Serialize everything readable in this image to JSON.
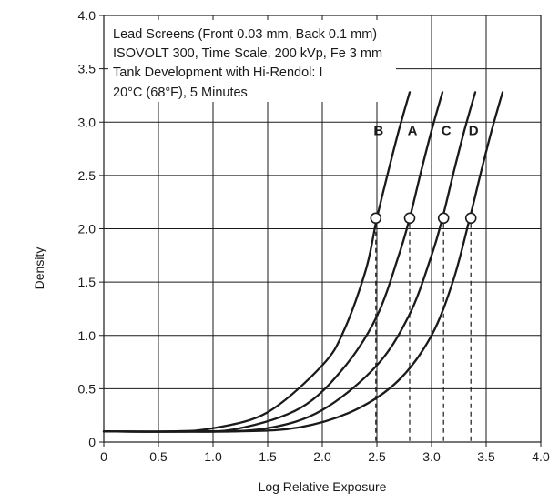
{
  "chart_data": {
    "type": "line",
    "xlabel": "Log Relative Exposure",
    "ylabel": "Density",
    "xlim": [
      0,
      4.0
    ],
    "ylim": [
      0,
      4.0
    ],
    "x_ticks": [
      "0",
      "0.5",
      "1.0",
      "1.5",
      "2.0",
      "2.5",
      "3.0",
      "3.5",
      "4.0"
    ],
    "y_ticks": [
      "0",
      "0.5",
      "1.0",
      "1.5",
      "2.0",
      "2.5",
      "3.0",
      "3.5",
      "4.0"
    ],
    "grid": true,
    "annotation_lines": [
      "Lead Screens (Front 0.03 mm, Back 0.1 mm)",
      "ISOVOLT 300, Time Scale, 200 kVp, Fe 3 mm",
      "Tank Development with Hi-Rendol: I",
      "20°C (68°F), 5 Minutes"
    ],
    "reference_density": 2.1,
    "series": [
      {
        "name": "B",
        "points": [
          [
            0,
            0.1
          ],
          [
            0.6,
            0.1
          ],
          [
            1.0,
            0.13
          ],
          [
            1.5,
            0.28
          ],
          [
            2.0,
            0.72
          ],
          [
            2.2,
            1.05
          ],
          [
            2.4,
            1.62
          ],
          [
            2.5,
            2.1
          ],
          [
            2.6,
            2.52
          ],
          [
            2.7,
            2.92
          ],
          [
            2.8,
            3.28
          ]
        ],
        "marker_x": 2.49
      },
      {
        "name": "A",
        "points": [
          [
            0,
            0.1
          ],
          [
            0.7,
            0.1
          ],
          [
            1.2,
            0.12
          ],
          [
            1.8,
            0.32
          ],
          [
            2.2,
            0.7
          ],
          [
            2.5,
            1.18
          ],
          [
            2.7,
            1.75
          ],
          [
            2.8,
            2.1
          ],
          [
            2.9,
            2.52
          ],
          [
            3.0,
            2.92
          ],
          [
            3.1,
            3.28
          ]
        ],
        "marker_x": 2.8
      },
      {
        "name": "C",
        "points": [
          [
            0,
            0.1
          ],
          [
            0.9,
            0.1
          ],
          [
            1.5,
            0.13
          ],
          [
            2.0,
            0.3
          ],
          [
            2.5,
            0.72
          ],
          [
            2.8,
            1.2
          ],
          [
            3.0,
            1.75
          ],
          [
            3.1,
            2.1
          ],
          [
            3.2,
            2.52
          ],
          [
            3.3,
            2.92
          ],
          [
            3.4,
            3.28
          ]
        ],
        "marker_x": 3.11
      },
      {
        "name": "D",
        "points": [
          [
            0,
            0.1
          ],
          [
            1.2,
            0.1
          ],
          [
            1.8,
            0.14
          ],
          [
            2.3,
            0.3
          ],
          [
            2.7,
            0.58
          ],
          [
            3.0,
            1.0
          ],
          [
            3.2,
            1.52
          ],
          [
            3.35,
            2.1
          ],
          [
            3.45,
            2.52
          ],
          [
            3.55,
            2.92
          ],
          [
            3.65,
            3.28
          ]
        ],
        "marker_x": 3.36
      }
    ]
  },
  "colors": {
    "curve": "#1a1a1a",
    "grid": "#1a1a1a",
    "background": "#ffffff"
  }
}
